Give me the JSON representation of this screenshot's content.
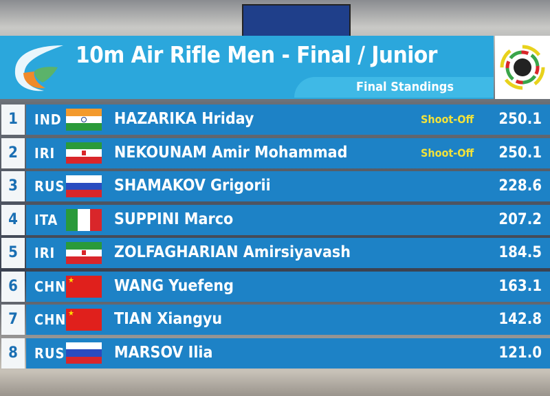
{
  "header": {
    "title": "10m Air Rifle Men - Final / Junior",
    "subtitle": "Final Standings"
  },
  "icons": {
    "logo": "federation-logo",
    "target": "issf-target-logo"
  },
  "colors": {
    "header": "#2ba7dc",
    "row": "#1d82c6",
    "shoot_off": "#f2e23a"
  },
  "rows": [
    {
      "rank": "1",
      "nation": "IND",
      "flag": "india",
      "name": "HAZARIKA Hriday",
      "note": "Shoot-Off",
      "score": "250.1"
    },
    {
      "rank": "2",
      "nation": "IRI",
      "flag": "iran",
      "name": "NEKOUNAM Amir Mohammad",
      "note": "Shoot-Off",
      "score": "250.1"
    },
    {
      "rank": "3",
      "nation": "RUS",
      "flag": "russia",
      "name": "SHAMAKOV Grigorii",
      "note": "",
      "score": "228.6"
    },
    {
      "rank": "4",
      "nation": "ITA",
      "flag": "italy",
      "name": "SUPPINI Marco",
      "note": "",
      "score": "207.2"
    },
    {
      "rank": "5",
      "nation": "IRI",
      "flag": "iran",
      "name": "ZOLFAGHARIAN Amirsiyavash",
      "note": "",
      "score": "184.5"
    },
    {
      "rank": "6",
      "nation": "CHN",
      "flag": "china",
      "name": "WANG Yuefeng",
      "note": "",
      "score": "163.1"
    },
    {
      "rank": "7",
      "nation": "CHN",
      "flag": "china",
      "name": "TIAN Xiangyu",
      "note": "",
      "score": "142.8"
    },
    {
      "rank": "8",
      "nation": "RUS",
      "flag": "russia",
      "name": "MARSOV Ilia",
      "note": "",
      "score": "121.0"
    }
  ]
}
